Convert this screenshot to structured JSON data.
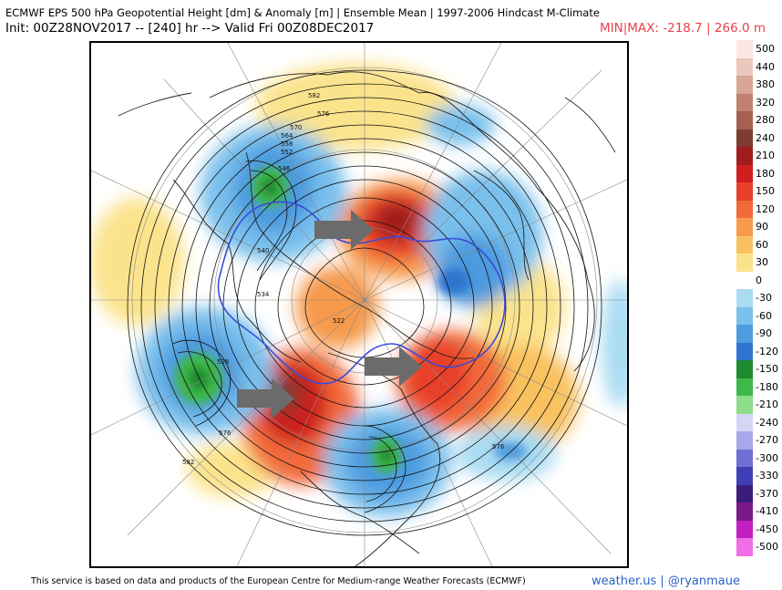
{
  "header": {
    "title": "ECMWF EPS 500 hPa Geopotential Height [dm] & Anomaly [m] | Ensemble Mean | 1997-2006 Hindcast M-Climate",
    "init": "Init: 00Z28NOV2017 -- [240] hr --> Valid Fri 00Z08DEC2017",
    "minmax": "MIN|MAX: -218.7 | 266.0 m"
  },
  "map": {
    "contour_labels": [
      "582",
      "576",
      "570",
      "564",
      "558",
      "552",
      "546",
      "540",
      "534",
      "528",
      "522",
      "576",
      "576",
      "582"
    ]
  },
  "legend": {
    "items": [
      {
        "label": "500",
        "color": "#fbe7e2"
      },
      {
        "label": "440",
        "color": "#ecc7bd"
      },
      {
        "label": "380",
        "color": "#d9a596"
      },
      {
        "label": "320",
        "color": "#c28070"
      },
      {
        "label": "280",
        "color": "#a66050"
      },
      {
        "label": "240",
        "color": "#7e3b30"
      },
      {
        "label": "210",
        "color": "#a11d1d"
      },
      {
        "label": "180",
        "color": "#cf1f1f"
      },
      {
        "label": "150",
        "color": "#e8402a"
      },
      {
        "label": "120",
        "color": "#f26a3a"
      },
      {
        "label": "90",
        "color": "#f79a4c"
      },
      {
        "label": "60",
        "color": "#f9c260"
      },
      {
        "label": "30",
        "color": "#fbe38c"
      },
      {
        "label": "0",
        "color": "#ffffff"
      },
      {
        "label": "-30",
        "color": "#a9dcf3"
      },
      {
        "label": "-60",
        "color": "#79c0ec"
      },
      {
        "label": "-90",
        "color": "#4e9be0"
      },
      {
        "label": "-120",
        "color": "#2f75cf"
      },
      {
        "label": "-150",
        "color": "#1f8a2f"
      },
      {
        "label": "-180",
        "color": "#3cb94a"
      },
      {
        "label": "-210",
        "color": "#8fdc8a"
      },
      {
        "label": "-240",
        "color": "#d5d6f5"
      },
      {
        "label": "-270",
        "color": "#a6a8e8"
      },
      {
        "label": "-300",
        "color": "#6f6fd6"
      },
      {
        "label": "-330",
        "color": "#3f3fb8"
      },
      {
        "label": "-370",
        "color": "#3a1d7a"
      },
      {
        "label": "-410",
        "color": "#7a1a86"
      },
      {
        "label": "-450",
        "color": "#c21fc2"
      },
      {
        "label": "-500",
        "color": "#f06ee6"
      }
    ]
  },
  "footer": {
    "credit": "This service is based on data and products of the European Centre for Medium-range Weather Forecasts (ECMWF)",
    "brand": "weather.us | @ryanmaue"
  }
}
